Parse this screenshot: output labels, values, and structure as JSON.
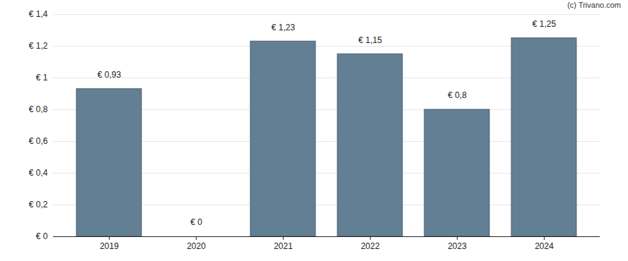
{
  "chart_data": {
    "type": "bar",
    "annotations": [
      "(c) Trivano.com"
    ],
    "categories": [
      "2019",
      "2020",
      "2021",
      "2022",
      "2023",
      "2024"
    ],
    "values": [
      0.93,
      0,
      1.23,
      1.15,
      0.8,
      1.25
    ],
    "value_labels": [
      "€ 0,93",
      "€ 0",
      "€ 1,23",
      "€ 1,15",
      "€ 0,8",
      "€ 1,25"
    ],
    "data_labels": true,
    "color": "#637f94",
    "ylim": [
      0,
      1.4
    ],
    "yticks": [
      {
        "value": 0,
        "label": "€ 0"
      },
      {
        "value": 0.2,
        "label": "€ 0,2"
      },
      {
        "value": 0.4,
        "label": "€ 0,4"
      },
      {
        "value": 0.6,
        "label": "€ 0,6"
      },
      {
        "value": 0.8,
        "label": "€ 0,8"
      },
      {
        "value": 1,
        "label": "€ 1"
      },
      {
        "value": 1.2,
        "label": "€ 1,2"
      },
      {
        "value": 1.4,
        "label": "€ 1,4"
      }
    ],
    "grid": true
  }
}
